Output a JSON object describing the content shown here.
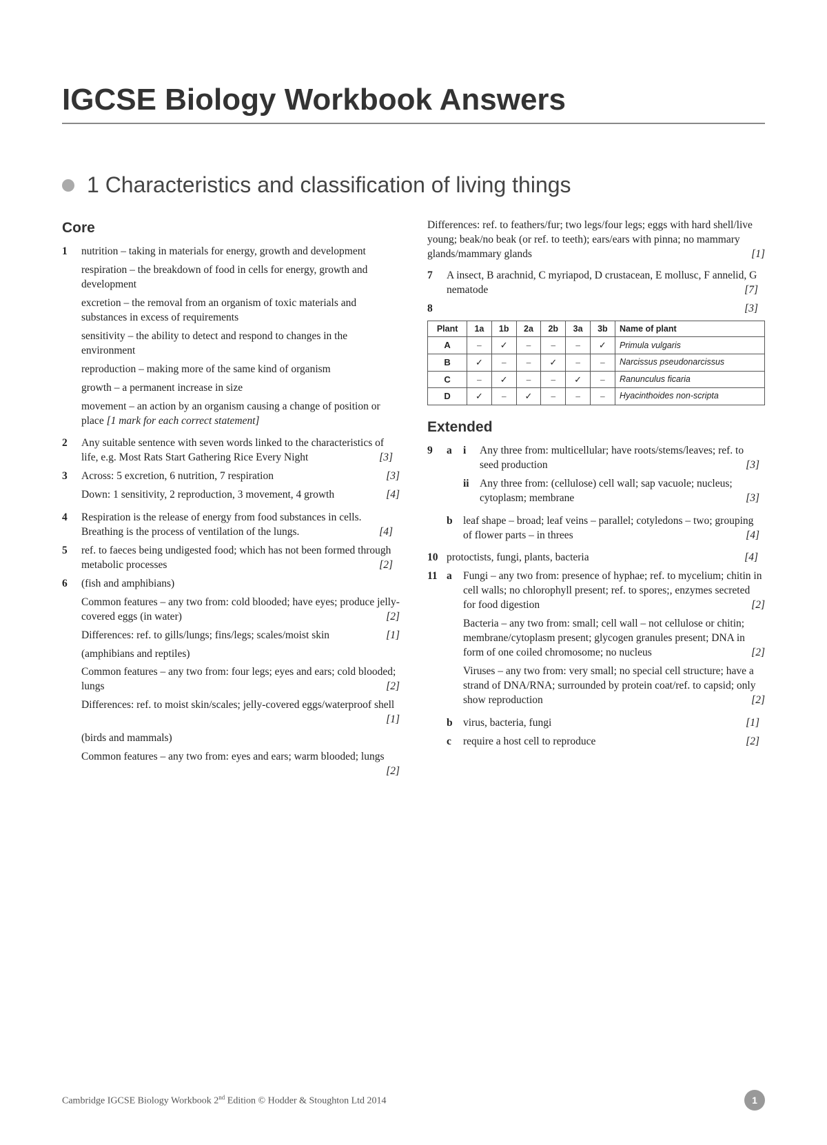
{
  "title": "IGCSE Biology Workbook Answers",
  "chapter": "1 Characteristics and classification of living things",
  "sections": {
    "core": "Core",
    "extended": "Extended"
  },
  "col1": {
    "q1": {
      "num": "1",
      "p1": "nutrition – taking in materials for energy, growth and development",
      "p2": "respiration – the breakdown of food in cells for energy, growth and development",
      "p3": "excretion – the removal from an organism of toxic materials and substances in excess of requirements",
      "p4": "sensitivity – the ability to detect and respond to changes in the environment",
      "p5": "reproduction – making more of the same kind of organism",
      "p6": "growth – a permanent increase in size",
      "p7a": "movement – an action by an organism causing a change of position or place ",
      "p7b": "[1 mark for each correct statement]"
    },
    "q2": {
      "num": "2",
      "text": "Any suitable sentence with seven words linked to the characteristics of life, e.g. Most Rats Start Gathering Rice Every Night",
      "mark": "[3]"
    },
    "q3": {
      "num": "3",
      "p1": "Across: 5 excretion, 6 nutrition, 7 respiration",
      "m1": "[3]",
      "p2": "Down: 1 sensitivity, 2 reproduction, 3 movement, 4 growth",
      "m2": "[4]"
    },
    "q4": {
      "num": "4",
      "text": "Respiration is the release of energy from food substances in cells. Breathing is the process of ventilation of the lungs.",
      "mark": "[4]"
    },
    "q5": {
      "num": "5",
      "text": "ref. to faeces being undigested food; which has not been formed through metabolic processes",
      "mark": "[2]"
    },
    "q6": {
      "num": "6",
      "p1": "(fish and amphibians)",
      "p2": "Common features – any two from: cold blooded; have eyes; produce jelly-covered eggs (in water)",
      "m2": "[2]",
      "p3": "Differences: ref. to gills/lungs; fins/legs; scales/moist skin",
      "m3": "[1]",
      "p4": "(amphibians and reptiles)",
      "p5": "Common features – any two from: four legs; eyes and ears; cold blooded; lungs",
      "m5": "[2]",
      "p6": "Differences: ref. to moist skin/scales; jelly-covered eggs/waterproof shell",
      "m6": "[1]",
      "p7": "(birds and mammals)",
      "p8": "Common features – any two from: eyes and ears; warm blooded; lungs",
      "m8": "[2]"
    }
  },
  "col2": {
    "q6cont": {
      "p1": "Differences: ref. to feathers/fur; two legs/four legs; eggs with hard shell/live young; beak/no beak (or ref. to teeth); ears/ears with pinna; no mammary glands/mammary glands",
      "m1": "[1]"
    },
    "q7": {
      "num": "7",
      "text": "A insect, B arachnid, C myriapod, D crustacean, E mollusc, F annelid, G nematode",
      "mark": "[7]"
    },
    "q8": {
      "num": "8",
      "mark": "[3]"
    },
    "table": {
      "headers": [
        "Plant",
        "1a",
        "1b",
        "2a",
        "2b",
        "3a",
        "3b",
        "Name of plant"
      ],
      "rows": [
        [
          "A",
          "–",
          "✓",
          "–",
          "–",
          "–",
          "✓",
          "Primula vulgaris"
        ],
        [
          "B",
          "✓",
          "–",
          "–",
          "✓",
          "–",
          "–",
          "Narcissus pseudonarcissus"
        ],
        [
          "C",
          "–",
          "✓",
          "–",
          "–",
          "✓",
          "–",
          "Ranunculus ficaria"
        ],
        [
          "D",
          "✓",
          "–",
          "✓",
          "–",
          "–",
          "–",
          "Hyacinthoides non-scripta"
        ]
      ]
    },
    "q9": {
      "num": "9",
      "a_i": "Any three from: multicellular; have roots/stems/leaves; ref. to seed production",
      "a_i_m": "[3]",
      "a_ii": "Any three from: (cellulose) cell wall; sap vacuole; nucleus; cytoplasm; membrane",
      "a_ii_m": "[3]",
      "b": "leaf shape – broad; leaf veins – parallel; cotyledons – two; grouping of flower parts – in threes",
      "b_m": "[4]"
    },
    "q10": {
      "num": "10",
      "text": "protoctists, fungi, plants, bacteria",
      "mark": "[4]"
    },
    "q11": {
      "num": "11",
      "a1": "Fungi – any two from: presence of hyphae; ref. to mycelium; chitin in cell walls; no chlorophyll present; ref. to spores;, enzymes secreted for food digestion",
      "a1_m": "[2]",
      "a2": "Bacteria – any two from: small; cell wall – not cellulose or chitin; membrane/cytoplasm present; glycogen granules present; DNA in form of one coiled chromosome; no nucleus",
      "a2_m": "[2]",
      "a3": "Viruses – any two from: very small; no special cell structure; have a strand of DNA/RNA; surrounded by protein coat/ref. to capsid; only show reproduction",
      "a3_m": "[2]",
      "b": "virus, bacteria, fungi",
      "b_m": "[1]",
      "c": "require a host cell to reproduce",
      "c_m": "[2]"
    }
  },
  "footer": {
    "text_a": "Cambridge IGCSE Biology Workbook 2",
    "text_b": "nd",
    "text_c": " Edition © Hodder & Stoughton Ltd 2014",
    "page": "1"
  }
}
